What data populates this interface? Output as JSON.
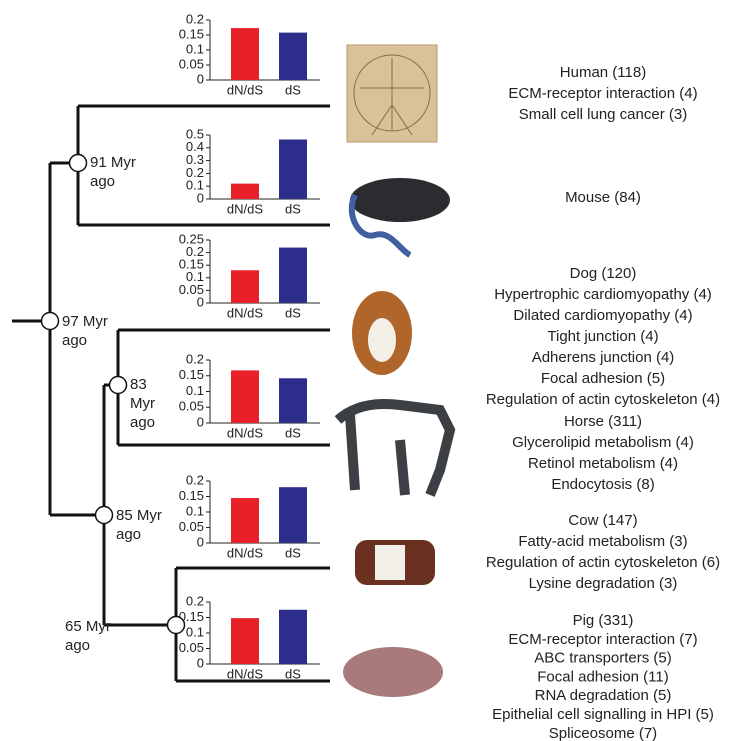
{
  "chart_data": [
    {
      "type": "bar",
      "categories": [
        "dN/dS",
        "dS"
      ],
      "values": [
        0.173,
        0.158
      ],
      "colors": [
        "#e8202a",
        "#2d2e8c"
      ],
      "ylim": [
        0,
        0.2
      ],
      "yticks": [
        0,
        0.05,
        0.1,
        0.15,
        0.2
      ]
    },
    {
      "type": "bar",
      "categories": [
        "dN/dS",
        "dS"
      ],
      "values": [
        0.12,
        0.465
      ],
      "colors": [
        "#e8202a",
        "#2d2e8c"
      ],
      "ylim": [
        0,
        0.5
      ],
      "yticks": [
        0,
        0.1,
        0.2,
        0.3,
        0.4,
        0.5
      ]
    },
    {
      "type": "bar",
      "categories": [
        "dN/dS",
        "dS"
      ],
      "values": [
        0.13,
        0.22
      ],
      "colors": [
        "#e8202a",
        "#2d2e8c"
      ],
      "ylim": [
        0,
        0.25
      ],
      "yticks": [
        0,
        0.05,
        0.1,
        0.15,
        0.2,
        0.25
      ]
    },
    {
      "type": "bar",
      "categories": [
        "dN/dS",
        "dS"
      ],
      "values": [
        0.167,
        0.142
      ],
      "colors": [
        "#e8202a",
        "#2d2e8c"
      ],
      "ylim": [
        0,
        0.2
      ],
      "yticks": [
        0,
        0.05,
        0.1,
        0.15,
        0.2
      ]
    },
    {
      "type": "bar",
      "categories": [
        "dN/dS",
        "dS"
      ],
      "values": [
        0.145,
        0.18
      ],
      "colors": [
        "#e8202a",
        "#2d2e8c"
      ],
      "ylim": [
        0,
        0.2
      ],
      "yticks": [
        0,
        0.05,
        0.1,
        0.15,
        0.2
      ]
    },
    {
      "type": "bar",
      "categories": [
        "dN/dS",
        "dS"
      ],
      "values": [
        0.148,
        0.175
      ],
      "colors": [
        "#e8202a",
        "#2d2e8c"
      ],
      "ylim": [
        0,
        0.2
      ],
      "yticks": [
        0,
        0.05,
        0.1,
        0.15,
        0.2
      ]
    }
  ],
  "tree": {
    "nodes": [
      {
        "lines": [
          "97 Myr",
          "ago"
        ]
      },
      {
        "lines": [
          "91 Myr",
          "ago"
        ]
      },
      {
        "lines": [
          "85 Myr",
          "ago"
        ]
      },
      {
        "lines": [
          "83",
          "Myr",
          "ago"
        ]
      },
      {
        "lines": [
          "65 Myr",
          "ago"
        ]
      }
    ]
  },
  "species": [
    {
      "lines": [
        "Human (118)",
        "ECM-receptor interaction (4)",
        "Small cell lung cancer (3)"
      ]
    },
    {
      "lines": [
        "Mouse (84)"
      ]
    },
    {
      "lines": [
        "Dog (120)",
        "Hypertrophic cardiomyopathy (4)",
        "Dilated cardiomyopathy (4)",
        "Tight junction (4)",
        "Adherens junction (4)",
        "Focal adhesion (5)",
        "Regulation of actin cytoskeleton (4)"
      ]
    },
    {
      "lines": [
        "Horse (311)",
        "Glycerolipid metabolism (4)",
        "Retinol metabolism (4)",
        "Endocytosis (8)"
      ]
    },
    {
      "lines": [
        "Cow (147)",
        "Fatty-acid metabolism (3)",
        "Regulation of actin cytoskeleton (6)",
        "Lysine degradation (3)"
      ]
    },
    {
      "lines": [
        "Pig (331)",
        "ECM-receptor interaction (7)",
        "ABC transporters (5)",
        "Focal adhesion (11)",
        "RNA degradation (5)",
        "Epithelial cell signalling in HPI (5)",
        "Spliceosome (7)"
      ]
    }
  ]
}
